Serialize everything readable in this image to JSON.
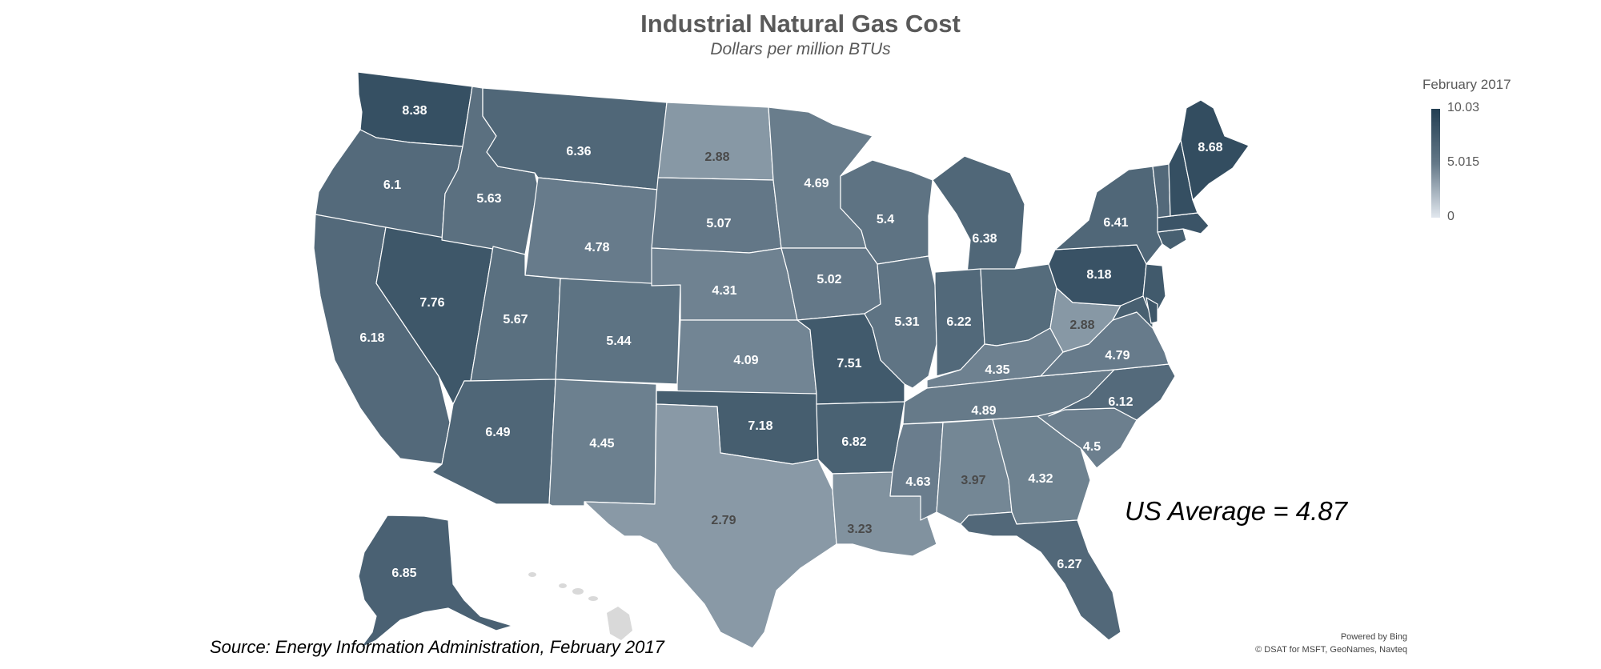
{
  "title": "Industrial Natural Gas Cost",
  "subtitle": "Dollars per million BTUs",
  "legend": {
    "title": "February 2017",
    "max_label": "10.03",
    "mid_label": "5.015",
    "min_label": "0",
    "max": 10.03,
    "min": 0
  },
  "colors": {
    "high": "#233f53",
    "low": "#e1e7ee",
    "border": "#ffffff",
    "label_light": "#ffffff",
    "label_dark": "#4a4a4a",
    "no_data": "#d9d9d9"
  },
  "states": [
    {
      "name": "Washington",
      "value": 8.38,
      "label": "8.38"
    },
    {
      "name": "Oregon",
      "value": 6.1,
      "label": "6.1"
    },
    {
      "name": "California",
      "value": 6.18,
      "label": "6.18"
    },
    {
      "name": "Nevada",
      "value": 7.76,
      "label": "7.76"
    },
    {
      "name": "Idaho",
      "value": 5.63,
      "label": "5.63"
    },
    {
      "name": "Montana",
      "value": 6.36,
      "label": "6.36"
    },
    {
      "name": "Wyoming",
      "value": 4.78,
      "label": "4.78"
    },
    {
      "name": "Utah",
      "value": 5.67,
      "label": "5.67"
    },
    {
      "name": "Arizona",
      "value": 6.49,
      "label": "6.49"
    },
    {
      "name": "Colorado",
      "value": 5.44,
      "label": "5.44"
    },
    {
      "name": "New Mexico",
      "value": 4.45,
      "label": "4.45"
    },
    {
      "name": "North Dakota",
      "value": 2.88,
      "label": "2.88"
    },
    {
      "name": "South Dakota",
      "value": 5.07,
      "label": "5.07"
    },
    {
      "name": "Nebraska",
      "value": 4.31,
      "label": "4.31"
    },
    {
      "name": "Kansas",
      "value": 4.09,
      "label": "4.09"
    },
    {
      "name": "Oklahoma",
      "value": 7.18,
      "label": "7.18"
    },
    {
      "name": "Texas",
      "value": 2.79,
      "label": "2.79"
    },
    {
      "name": "Minnesota",
      "value": 4.69,
      "label": "4.69"
    },
    {
      "name": "Iowa",
      "value": 5.02,
      "label": "5.02"
    },
    {
      "name": "Missouri",
      "value": 7.51,
      "label": "7.51"
    },
    {
      "name": "Arkansas",
      "value": 6.82,
      "label": "6.82"
    },
    {
      "name": "Louisiana",
      "value": 3.23,
      "label": "3.23"
    },
    {
      "name": "Wisconsin",
      "value": 5.4,
      "label": "5.4"
    },
    {
      "name": "Illinois",
      "value": 5.31,
      "label": "5.31"
    },
    {
      "name": "Michigan",
      "value": 6.38,
      "label": "6.38"
    },
    {
      "name": "Indiana",
      "value": 6.22,
      "label": "6.22"
    },
    {
      "name": "Ohio",
      "value": 6.0,
      "label": ""
    },
    {
      "name": "Kentucky",
      "value": 4.35,
      "label": "4.35"
    },
    {
      "name": "Tennessee",
      "value": 4.89,
      "label": "4.89"
    },
    {
      "name": "Mississippi",
      "value": 4.63,
      "label": "4.63"
    },
    {
      "name": "Alabama",
      "value": 3.97,
      "label": "3.97"
    },
    {
      "name": "Georgia",
      "value": 4.32,
      "label": "4.32"
    },
    {
      "name": "Florida",
      "value": 6.27,
      "label": "6.27"
    },
    {
      "name": "South Carolina",
      "value": 4.5,
      "label": "4.5"
    },
    {
      "name": "North Carolina",
      "value": 6.12,
      "label": "6.12"
    },
    {
      "name": "Virginia",
      "value": 4.79,
      "label": "4.79"
    },
    {
      "name": "West Virginia",
      "value": 2.88,
      "label": "2.88"
    },
    {
      "name": "Pennsylvania",
      "value": 8.18,
      "label": "8.18"
    },
    {
      "name": "New York",
      "value": 6.41,
      "label": "6.41"
    },
    {
      "name": "New Jersey",
      "value": 7.5,
      "label": ""
    },
    {
      "name": "Maryland",
      "value": 7.0,
      "label": ""
    },
    {
      "name": "Delaware",
      "value": 7.8,
      "label": ""
    },
    {
      "name": "Connecticut",
      "value": 7.0,
      "label": ""
    },
    {
      "name": "Massachusetts",
      "value": 8.0,
      "label": ""
    },
    {
      "name": "Vermont",
      "value": 6.2,
      "label": ""
    },
    {
      "name": "New Hampshire",
      "value": 8.5,
      "label": ""
    },
    {
      "name": "Maine",
      "value": 8.68,
      "label": "8.68"
    },
    {
      "name": "Alaska",
      "value": 6.85,
      "label": "6.85"
    }
  ],
  "annotation": "US Average = 4.87",
  "source": "Source:  Energy Information Administration, February 2017",
  "credits": [
    "Powered by Bing",
    "© DSAT for MSFT, GeoNames, Navteq"
  ]
}
